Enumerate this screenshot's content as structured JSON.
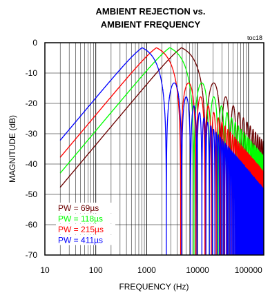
{
  "chart_data": {
    "type": "line",
    "title": [
      "AMBIENT REJECTION vs.",
      "AMBIENT FREQUENCY"
    ],
    "annotation": "toc18",
    "xlabel": "FREQUENCY (Hz)",
    "ylabel": "MAGNITUDE (dB)",
    "x_scale": "log",
    "xlim": [
      10,
      200000
    ],
    "ylim": [
      -70,
      0
    ],
    "x_ticks": [
      10,
      100,
      1000,
      10000,
      100000
    ],
    "x_tick_labels": [
      "10",
      "100",
      "1000",
      "10000",
      "100000"
    ],
    "y_ticks": [
      0,
      -10,
      -20,
      -30,
      -40,
      -50,
      -60,
      -70
    ],
    "y_tick_labels": [
      "0",
      "-10",
      "-20",
      "-30",
      "-40",
      "-50",
      "-60",
      "-70"
    ],
    "grid": true,
    "legend_position": "bottom-left",
    "series": [
      {
        "name": "PW =   69µs",
        "pulse_width_us": 69,
        "color": "#6b0000",
        "x": [
          20,
          100,
          1000,
          3500,
          7250
        ],
        "y": [
          -44.5,
          -30.5,
          -10.5,
          -0.5,
          0
        ]
      },
      {
        "name": "PW = 118µs",
        "pulse_width_us": 118,
        "color": "#00ff00",
        "x": [
          20,
          100,
          1000,
          2100,
          4240
        ],
        "y": [
          -39.5,
          -25.6,
          -5.6,
          -0.5,
          0
        ]
      },
      {
        "name": "PW = 215µs",
        "pulse_width_us": 215,
        "color": "#ff0000",
        "x": [
          20,
          100,
          1000,
          1200,
          2330
        ],
        "y": [
          -34.5,
          -20.6,
          -1.0,
          -0.5,
          0
        ]
      },
      {
        "name": "PW = 411µs",
        "pulse_width_us": 411,
        "color": "#0000ff",
        "x": [
          20,
          100,
          600,
          1217
        ],
        "y": [
          -29.0,
          -15.0,
          -1.0,
          0
        ]
      }
    ]
  }
}
